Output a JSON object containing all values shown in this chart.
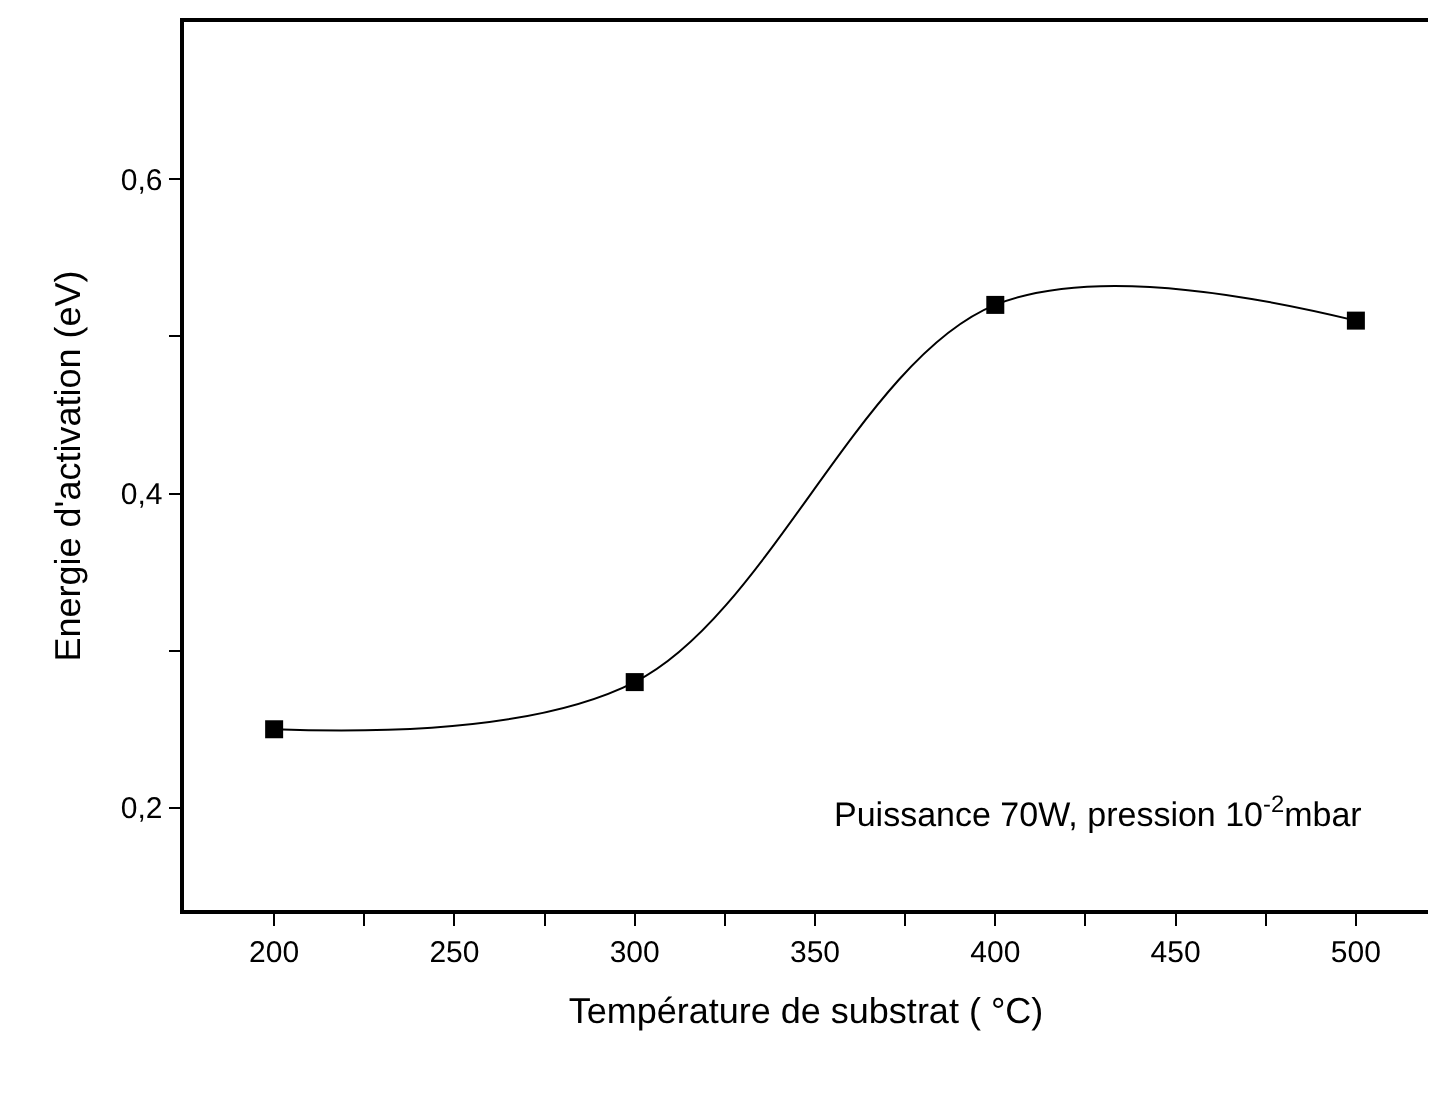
{
  "chart_data": {
    "type": "line",
    "xlabel": "Température de substrat ( °C)",
    "ylabel": "Energie d'activation (eV)",
    "x": [
      200,
      300,
      400,
      500
    ],
    "series": [
      {
        "color": "#000000",
        "values": [
          0.25,
          0.28,
          0.52,
          0.51
        ]
      }
    ],
    "marker": "square",
    "line_style": "solid",
    "xlim": [
      175,
      520
    ],
    "ylim": [
      0.135,
      0.7
    ],
    "xticks": [
      200,
      {
        "value": 225,
        "label": null
      },
      250,
      {
        "value": 275,
        "label": null
      },
      300,
      {
        "value": 325,
        "label": null
      },
      350,
      {
        "value": 375,
        "label": null
      },
      400,
      {
        "value": 425,
        "label": null
      },
      450,
      {
        "value": 475,
        "label": null
      },
      500
    ],
    "yticks": [
      {
        "value": 0.2,
        "label": "0,2"
      },
      {
        "value": 0.3,
        "label": null
      },
      {
        "value": 0.4,
        "label": "0,4"
      },
      {
        "value": 0.5,
        "label": null
      },
      {
        "value": 0.6,
        "label": "0,6"
      }
    ],
    "annotations": [
      "Puissance 70W, pression 10$^{-2}$mbar"
    ]
  }
}
